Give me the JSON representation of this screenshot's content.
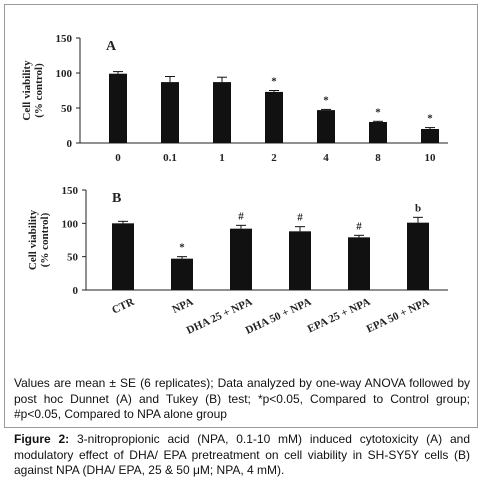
{
  "chart_data": [
    {
      "type": "bar",
      "panel_label": "A",
      "ylabel": [
        "Cell viability",
        "(% control)"
      ],
      "categories": [
        "0",
        "0.1",
        "1",
        "2",
        "4",
        "8",
        "10"
      ],
      "values": [
        99,
        87,
        87,
        73,
        47,
        30,
        20
      ],
      "errors": [
        3,
        8,
        7,
        2,
        1,
        1,
        2
      ],
      "annotations": [
        null,
        null,
        null,
        "*",
        "*",
        "*",
        "*"
      ],
      "color": "#111111",
      "ylim": [
        0,
        150
      ],
      "yticks": [
        0,
        50,
        100,
        150
      ],
      "grid": false
    },
    {
      "type": "bar",
      "panel_label": "B",
      "ylabel": [
        "Cell viability",
        "(% control)"
      ],
      "categories": [
        "CTR",
        "NPA",
        "DHA 25 + NPA",
        "DHA 50 + NPA",
        "EPA 25 + NPA",
        "EPA 50 + NPA"
      ],
      "values": [
        100,
        47,
        92,
        88,
        79,
        101
      ],
      "errors": [
        3,
        3,
        5,
        7,
        3,
        8
      ],
      "annotations": [
        null,
        "*",
        "#",
        "#",
        "#",
        "b"
      ],
      "color": "#111111",
      "ylim": [
        0,
        150
      ],
      "yticks": [
        0,
        50,
        100,
        150
      ],
      "grid": false
    }
  ],
  "note": "Values are mean ± SE (6 replicates); Data analyzed by one-way ANOVA followed by post hoc Dunnet (A) and Tukey (B) test; *p<0.05, Compared to Control group; #p<0.05, Compared to NPA alone group",
  "caption": {
    "label": "Figure 2:",
    "text": "3-nitropropionic acid (NPA, 0.1-10 mM) induced cytotoxicity (A) and modulatory effect of DHA/ EPA pretreatment on cell viability in SH-SY5Y cells (B) against NPA (DHA/ EPA, 25 & 50 μM; NPA, 4 mM)."
  }
}
